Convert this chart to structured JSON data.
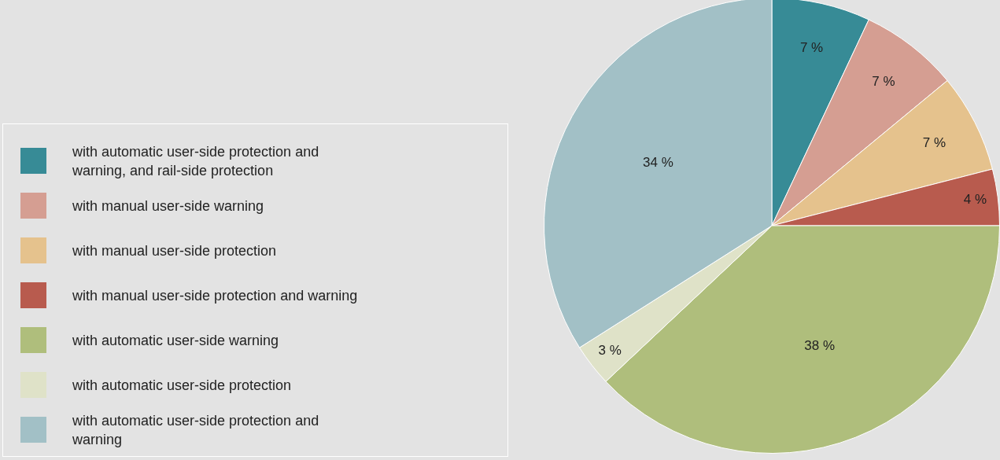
{
  "chart_data": {
    "type": "pie",
    "categories": [
      "with automatic user-side protection and warning, and rail-side protection",
      "with manual user-side warning",
      "with manual user-side protection",
      "with manual user-side protection and warning",
      "with automatic user-side warning",
      "with automatic user-side protection",
      "with automatic user-side protection and warning"
    ],
    "values": [
      7,
      7,
      7,
      4,
      38,
      3,
      34
    ],
    "value_labels": [
      "7 %",
      "7 %",
      "7 %",
      "4 %",
      "38 %",
      "3 %",
      "34 %"
    ],
    "colors": [
      "#378b96",
      "#d59e92",
      "#e5c28d",
      "#b85b4e",
      "#afbe7c",
      "#dfe2c8",
      "#a2c0c6"
    ],
    "legend": "left"
  }
}
